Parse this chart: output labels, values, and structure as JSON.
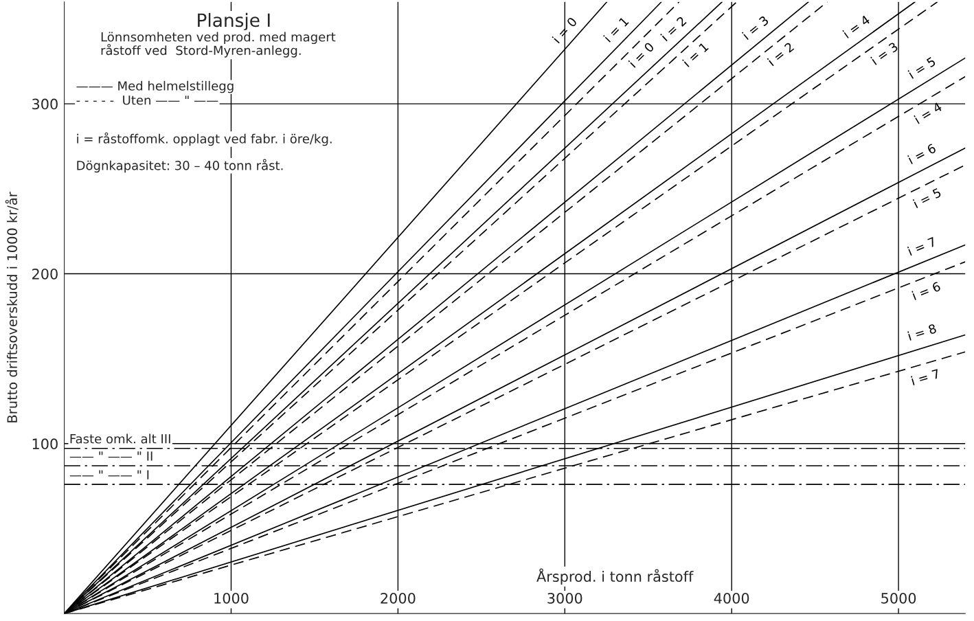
{
  "chart_data": {
    "type": "line",
    "title": "Plansje I",
    "subtitle": "Lönnsomheten ved prod. med magert\nråstoff ved  Stord-Myren-anlegg.",
    "xlabel": "Årsprod. i tonn råstoff",
    "ylabel": "Brutto driftsoverskudd i 1000 kr/år",
    "xlim": [
      0,
      5400
    ],
    "ylim": [
      0,
      360
    ],
    "xticks": [
      1000,
      2000,
      3000,
      4000,
      5000
    ],
    "yticks": [
      100,
      200,
      300
    ],
    "grid": true,
    "annotations": [
      "——— Med helmelstillegg",
      "- - - - -  Uten —— \" ——",
      "i = råstoffomk. opplagt ved fabr. i öre/kg.",
      "Dögnkapasitet: 30 – 40 tonn råst."
    ],
    "ref_lines": [
      {
        "axis": "y",
        "value": 97.2,
        "label": "Faste omk. alt III",
        "line_style": "dashdot",
        "color": "#000000"
      },
      {
        "axis": "y",
        "value": 87.0,
        "label": "—— \" —— \" II",
        "line_style": "dashdot",
        "color": "#000000"
      },
      {
        "axis": "y",
        "value": 76.0,
        "label": "—— \" —— \" I",
        "line_style": "dashdot",
        "color": "#000000"
      }
    ],
    "series": [
      {
        "name": "i = 0",
        "color": "#000000",
        "line_style": "solid",
        "x": [
          0,
          3252
        ],
        "values": [
          0,
          360
        ]
      },
      {
        "name": "i = 1",
        "color": "#000000",
        "line_style": "solid",
        "x": [
          0,
          3579
        ],
        "values": [
          0,
          360
        ]
      },
      {
        "name": "i = 0",
        "color": "#000000",
        "line_style": "dashed",
        "x": [
          0,
          3685
        ],
        "values": [
          0,
          360
        ]
      },
      {
        "name": "i = 2",
        "color": "#000000",
        "line_style": "solid",
        "x": [
          0,
          3943
        ],
        "values": [
          0,
          360
        ]
      },
      {
        "name": "i = 1",
        "color": "#000000",
        "line_style": "dashed",
        "x": [
          0,
          4031
        ],
        "values": [
          0,
          360
        ]
      },
      {
        "name": "i = 3",
        "color": "#000000",
        "line_style": "solid",
        "x": [
          0,
          4461
        ],
        "values": [
          0,
          360
        ]
      },
      {
        "name": "i = 2",
        "color": "#000000",
        "line_style": "dashed",
        "x": [
          0,
          4574
        ],
        "values": [
          0,
          360
        ]
      },
      {
        "name": "i = 4",
        "color": "#000000",
        "line_style": "solid",
        "x": [
          0,
          5099
        ],
        "values": [
          0,
          360
        ]
      },
      {
        "name": "i = 3",
        "color": "#000000",
        "line_style": "dashed",
        "x": [
          0,
          5233
        ],
        "values": [
          0,
          360
        ]
      },
      {
        "name": "i = 5",
        "color": "#000000",
        "line_style": "solid",
        "x": [
          0,
          5400
        ],
        "values": [
          0,
          327
        ]
      },
      {
        "name": "i = 4",
        "color": "#000000",
        "line_style": "dashed",
        "x": [
          0,
          5400
        ],
        "values": [
          0,
          316
        ]
      },
      {
        "name": "i = 6",
        "color": "#000000",
        "line_style": "solid",
        "x": [
          0,
          5400
        ],
        "values": [
          0,
          274
        ]
      },
      {
        "name": "i = 5",
        "color": "#000000",
        "line_style": "dashed",
        "x": [
          0,
          5400
        ],
        "values": [
          0,
          264
        ]
      },
      {
        "name": "i = 7",
        "color": "#000000",
        "line_style": "solid",
        "x": [
          0,
          5400
        ],
        "values": [
          0,
          217
        ]
      },
      {
        "name": "i = 6",
        "color": "#000000",
        "line_style": "dashed",
        "x": [
          0,
          5400
        ],
        "values": [
          0,
          207
        ]
      },
      {
        "name": "i = 8",
        "color": "#000000",
        "line_style": "solid",
        "x": [
          0,
          5400
        ],
        "values": [
          0,
          164
        ]
      },
      {
        "name": "i = 7",
        "color": "#000000",
        "line_style": "dashed",
        "x": [
          0,
          5400
        ],
        "values": [
          0,
          154
        ]
      }
    ]
  }
}
